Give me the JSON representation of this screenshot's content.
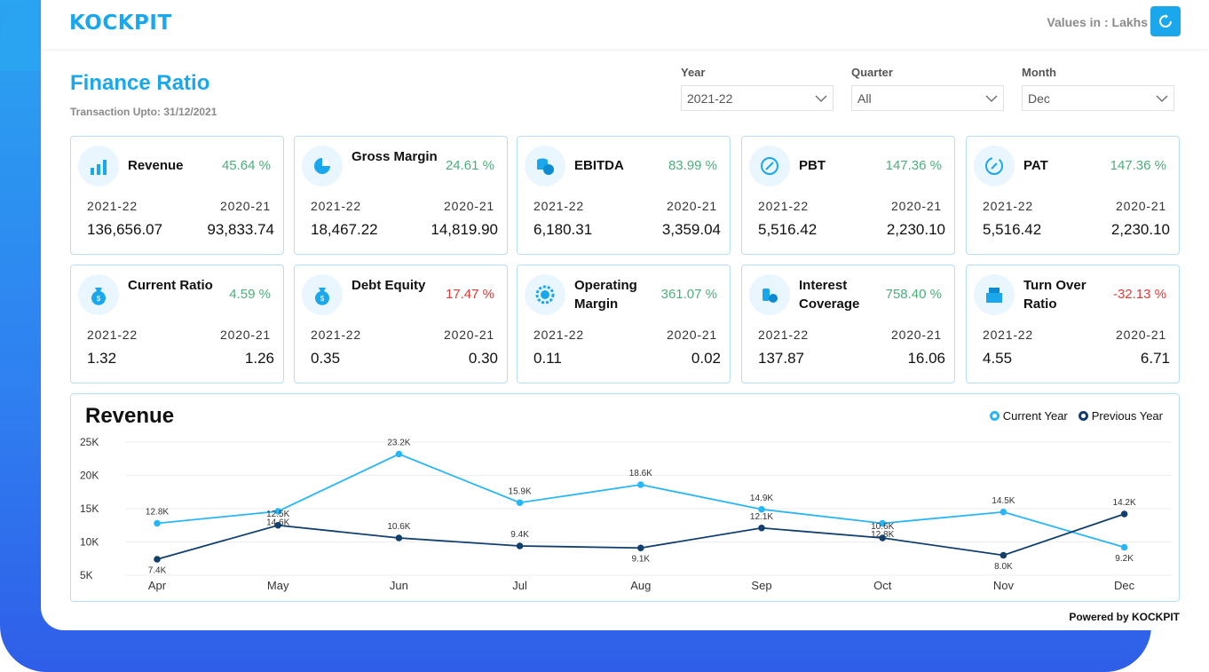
{
  "header": {
    "logo": "KOCKPIT",
    "values_label": "Values in : Lakhs"
  },
  "page": {
    "title": "Finance Ratio",
    "subtitle": "Transaction Upto: 31/12/2021"
  },
  "filters": [
    {
      "label": "Year",
      "value": "2021-22"
    },
    {
      "label": "Quarter",
      "value": "All"
    },
    {
      "label": "Month",
      "value": "Dec"
    }
  ],
  "cards": [
    {
      "name": "Revenue",
      "pct": "45.64 %",
      "status": "positive",
      "cy_label": "2021-22",
      "py_label": "2020-21",
      "cy": "136,656.07",
      "py": "93,833.74",
      "icon": "chart-bars-icon"
    },
    {
      "name": "Gross Margin",
      "pct": "24.61 %",
      "status": "positive",
      "cy_label": "2021-22",
      "py_label": "2020-21",
      "cy": "18,467.22",
      "py": "14,819.90",
      "icon": "pie-chart-icon"
    },
    {
      "name": "EBITDA",
      "pct": "83.99 %",
      "status": "positive",
      "cy_label": "2021-22",
      "py_label": "2020-21",
      "cy": "6,180.31",
      "py": "3,359.04",
      "icon": "coins-icon"
    },
    {
      "name": "PBT",
      "pct": "147.36 %",
      "status": "positive",
      "cy_label": "2021-22",
      "py_label": "2020-21",
      "cy": "5,516.42",
      "py": "2,230.10",
      "icon": "percent-circle-icon"
    },
    {
      "name": "PAT",
      "pct": "147.36 %",
      "status": "positive",
      "cy_label": "2021-22",
      "py_label": "2020-21",
      "cy": "5,516.42",
      "py": "2,230.10",
      "icon": "percent-cycle-icon"
    },
    {
      "name": "Current Ratio",
      "pct": "4.59 %",
      "status": "positive",
      "cy_label": "2021-22",
      "py_label": "2020-21",
      "cy": "1.32",
      "py": "1.26",
      "icon": "money-bag-icon"
    },
    {
      "name": "Debt Equity",
      "pct": "17.47 %",
      "status": "negative",
      "cy_label": "2021-22",
      "py_label": "2020-21",
      "cy": "0.35",
      "py": "0.30",
      "icon": "money-bag-icon"
    },
    {
      "name": "Operating Margin",
      "pct": "361.07 %",
      "status": "positive",
      "cy_label": "2021-22",
      "py_label": "2020-21",
      "cy": "0.11",
      "py": "0.02",
      "icon": "gear-coin-icon"
    },
    {
      "name": "Interest Coverage",
      "pct": "758.40 %",
      "status": "positive",
      "cy_label": "2021-22",
      "py_label": "2020-21",
      "cy": "137.87",
      "py": "16.06",
      "icon": "coin-stack-icon"
    },
    {
      "name": "Turn Over Ratio",
      "pct": "-32.13 %",
      "status": "negative",
      "cy_label": "2021-22",
      "py_label": "2020-21",
      "cy": "4.55",
      "py": "6.71",
      "icon": "cash-register-icon"
    }
  ],
  "chart_data": {
    "type": "line",
    "title": "Revenue",
    "categories": [
      "Apr",
      "May",
      "Jun",
      "Jul",
      "Aug",
      "Sep",
      "Oct",
      "Nov",
      "Dec"
    ],
    "yticks": [
      "25K",
      "20K",
      "15K",
      "10K",
      "5K"
    ],
    "ylim": [
      5000,
      25000
    ],
    "grid": true,
    "legend_position": "top-right",
    "series": [
      {
        "name": "Current Year",
        "color": "#29b6f6",
        "values": [
          12800,
          14600,
          23200,
          15900,
          18600,
          14900,
          12800,
          14500,
          9200
        ],
        "labels": [
          "12.8K",
          "14.6K",
          "23.2K",
          "15.9K",
          "18.6K",
          "14.9K",
          "12.8K",
          "14.5K",
          "9.2K"
        ]
      },
      {
        "name": "Previous Year",
        "color": "#123f6e",
        "values": [
          7400,
          12500,
          10600,
          9400,
          9100,
          12100,
          10600,
          8000,
          14200
        ],
        "labels": [
          "7.4K",
          "12.5K",
          "10.6K",
          "9.4K",
          "9.1K",
          "12.1K",
          "10.6K",
          "8.0K",
          "14.2K"
        ]
      }
    ]
  },
  "footer": {
    "powered": "Powered by KOCKPIT"
  }
}
